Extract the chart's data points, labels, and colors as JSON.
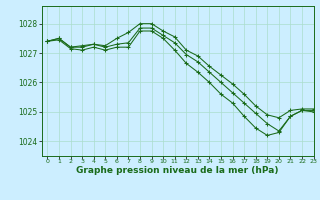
{
  "background_color": "#cceeff",
  "grid_color": "#aaddcc",
  "line_color": "#1a6b1a",
  "marker_color": "#1a6b1a",
  "title": "Graphe pression niveau de la mer (hPa)",
  "title_fontsize": 6.5,
  "xlim": [
    -0.5,
    23
  ],
  "ylim": [
    1023.5,
    1028.6
  ],
  "yticks": [
    1024,
    1025,
    1026,
    1027,
    1028
  ],
  "xticks": [
    0,
    1,
    2,
    3,
    4,
    5,
    6,
    7,
    8,
    9,
    10,
    11,
    12,
    13,
    14,
    15,
    16,
    17,
    18,
    19,
    20,
    21,
    22,
    23
  ],
  "series": [
    {
      "x": [
        0,
        1,
        2,
        3,
        4,
        5,
        6,
        7,
        8,
        9,
        10,
        11,
        12,
        13,
        14,
        15,
        16,
        17,
        18,
        19,
        20,
        21,
        22,
        23
      ],
      "y": [
        1027.4,
        1027.5,
        1027.2,
        1027.25,
        1027.3,
        1027.25,
        1027.5,
        1027.7,
        1028.0,
        1028.0,
        1027.75,
        1027.55,
        1027.1,
        1026.9,
        1026.55,
        1026.25,
        1025.95,
        1025.6,
        1025.2,
        1024.9,
        1024.8,
        1025.05,
        1025.1,
        1025.1
      ]
    },
    {
      "x": [
        0,
        1,
        2,
        3,
        4,
        5,
        6,
        7,
        8,
        9,
        10,
        11,
        12,
        13,
        14,
        15,
        16,
        17,
        18,
        19,
        20,
        21,
        22,
        23
      ],
      "y": [
        1027.4,
        1027.5,
        1027.2,
        1027.2,
        1027.3,
        1027.2,
        1027.3,
        1027.35,
        1027.85,
        1027.85,
        1027.6,
        1027.35,
        1026.95,
        1026.7,
        1026.35,
        1026.0,
        1025.65,
        1025.3,
        1024.95,
        1024.6,
        1024.35,
        1024.85,
        1025.05,
        1025.05
      ]
    },
    {
      "x": [
        0,
        1,
        2,
        3,
        4,
        5,
        6,
        7,
        8,
        9,
        10,
        11,
        12,
        13,
        14,
        15,
        16,
        17,
        18,
        19,
        20,
        21,
        22,
        23
      ],
      "y": [
        1027.4,
        1027.45,
        1027.15,
        1027.1,
        1027.2,
        1027.1,
        1027.2,
        1027.2,
        1027.75,
        1027.75,
        1027.5,
        1027.1,
        1026.65,
        1026.35,
        1026.0,
        1025.6,
        1025.3,
        1024.85,
        1024.45,
        1024.2,
        1024.3,
        1024.85,
        1025.05,
        1025.0
      ]
    }
  ]
}
